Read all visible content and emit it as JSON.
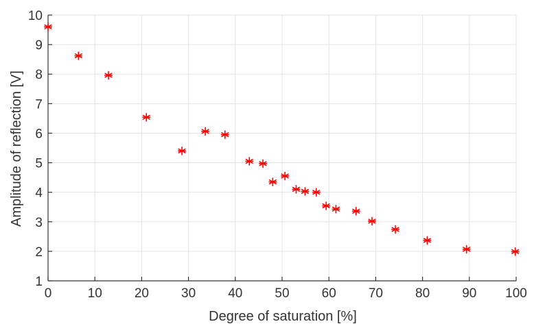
{
  "chart_data": {
    "type": "scatter",
    "xlabel": "Degree of saturation [%]",
    "ylabel": "Amplitude of reflection [V]",
    "xlim": [
      0,
      100
    ],
    "ylim": [
      1,
      10
    ],
    "x_ticks": [
      0,
      10,
      20,
      30,
      40,
      50,
      60,
      70,
      80,
      90,
      100
    ],
    "y_ticks": [
      1,
      2,
      3,
      4,
      5,
      6,
      7,
      8,
      9,
      10
    ],
    "grid": true,
    "marker": "asterisk",
    "marker_color": "#ff0000",
    "series": [
      {
        "x": [
          0,
          6.5,
          12.9,
          21,
          28.6,
          33.6,
          37.8,
          43,
          45.9,
          48,
          50.6,
          53,
          54.9,
          57.3,
          59.4,
          61.5,
          65.8,
          69.2,
          74.2,
          81,
          89.4,
          99.8
        ],
        "y": [
          9.6,
          8.62,
          7.96,
          6.54,
          5.4,
          6.06,
          5.95,
          5.05,
          4.97,
          4.35,
          4.55,
          4.1,
          4.03,
          4.0,
          3.54,
          3.43,
          3.36,
          3.02,
          2.74,
          2.37,
          2.07,
          1.99
        ]
      }
    ]
  }
}
